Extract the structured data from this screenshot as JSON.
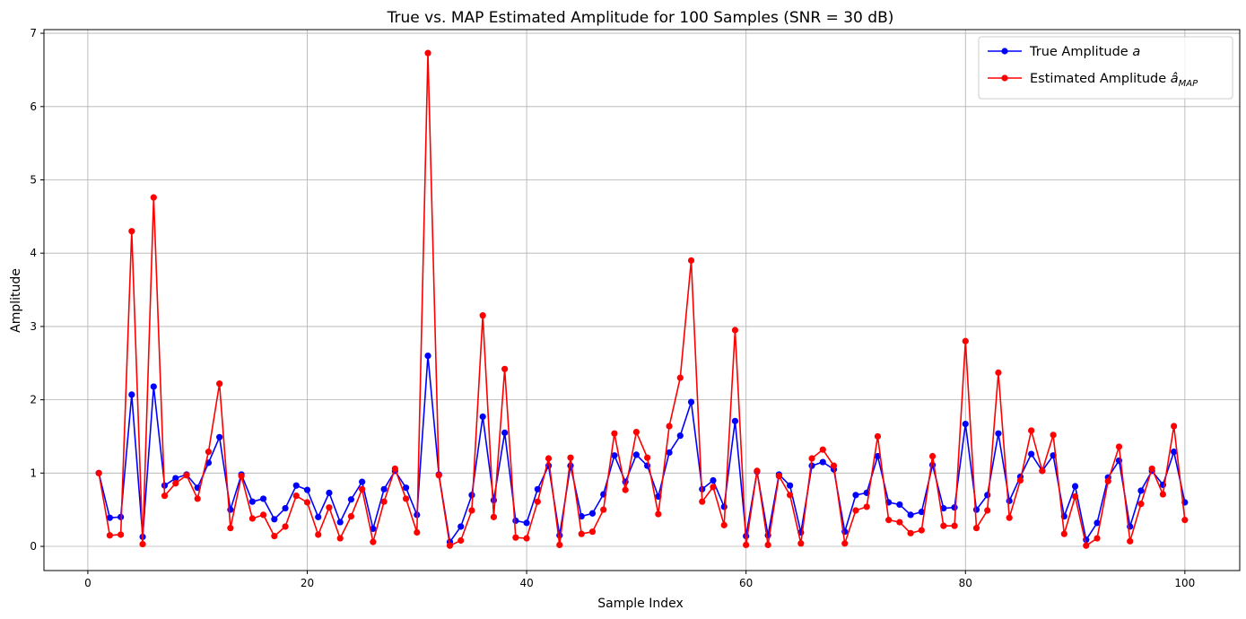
{
  "chart_data": {
    "type": "line",
    "title": "True vs. MAP Estimated Amplitude for 100 Samples (SNR = 30 dB)",
    "xlabel": "Sample Index",
    "ylabel": "Amplitude",
    "xlim": [
      -4,
      105
    ],
    "ylim": [
      -0.33,
      7.05
    ],
    "xticks": [
      0,
      20,
      40,
      60,
      80,
      100
    ],
    "yticks": [
      0,
      1,
      2,
      3,
      4,
      5,
      6,
      7
    ],
    "grid": true,
    "legend_position": "top-right",
    "x": [
      1,
      2,
      3,
      4,
      5,
      6,
      7,
      8,
      9,
      10,
      11,
      12,
      13,
      14,
      15,
      16,
      17,
      18,
      19,
      20,
      21,
      22,
      23,
      24,
      25,
      26,
      27,
      28,
      29,
      30,
      31,
      32,
      33,
      34,
      35,
      36,
      37,
      38,
      39,
      40,
      41,
      42,
      43,
      44,
      45,
      46,
      47,
      48,
      49,
      50,
      51,
      52,
      53,
      54,
      55,
      56,
      57,
      58,
      59,
      60,
      61,
      62,
      63,
      64,
      65,
      66,
      67,
      68,
      69,
      70,
      71,
      72,
      73,
      74,
      75,
      76,
      77,
      78,
      79,
      80,
      81,
      82,
      83,
      84,
      85,
      86,
      87,
      88,
      89,
      90,
      91,
      92,
      93,
      94,
      95,
      96,
      97,
      98,
      99,
      100
    ],
    "series": [
      {
        "name": "True Amplitude $a$",
        "label_main": "True Amplitude ",
        "label_sym": "a",
        "color": "#0000ff",
        "values": [
          1.0,
          0.39,
          0.4,
          2.07,
          0.13,
          2.18,
          0.83,
          0.93,
          0.98,
          0.8,
          1.14,
          1.49,
          0.5,
          0.98,
          0.61,
          0.65,
          0.37,
          0.52,
          0.83,
          0.77,
          0.4,
          0.73,
          0.33,
          0.64,
          0.88,
          0.24,
          0.78,
          1.03,
          0.8,
          0.43,
          2.6,
          0.98,
          0.06,
          0.27,
          0.7,
          1.77,
          0.63,
          1.55,
          0.35,
          0.32,
          0.78,
          1.1,
          0.15,
          1.1,
          0.41,
          0.45,
          0.71,
          1.24,
          0.88,
          1.25,
          1.1,
          0.68,
          1.28,
          1.51,
          1.97,
          0.78,
          0.9,
          0.54,
          1.71,
          0.14,
          1.02,
          0.15,
          0.98,
          0.83,
          0.19,
          1.1,
          1.15,
          1.05,
          0.2,
          0.7,
          0.73,
          1.23,
          0.6,
          0.57,
          0.43,
          0.47,
          1.11,
          0.52,
          0.53,
          1.67,
          0.5,
          0.7,
          1.54,
          0.62,
          0.95,
          1.26,
          1.03,
          1.24,
          0.41,
          0.82,
          0.09,
          0.32,
          0.94,
          1.17,
          0.27,
          0.76,
          1.03,
          0.84,
          1.29,
          0.6
        ]
      },
      {
        "name": "Estimated Amplitude $\\hat{a}_{MAP}$",
        "label_main": "Estimated Amplitude ",
        "label_sym": "â",
        "label_sub": "MAP",
        "color": "#ff0000",
        "values": [
          1.0,
          0.15,
          0.16,
          4.3,
          0.03,
          4.76,
          0.69,
          0.86,
          0.97,
          0.65,
          1.29,
          2.22,
          0.25,
          0.96,
          0.38,
          0.43,
          0.14,
          0.27,
          0.69,
          0.6,
          0.16,
          0.53,
          0.11,
          0.41,
          0.78,
          0.06,
          0.61,
          1.06,
          0.65,
          0.19,
          6.73,
          0.97,
          0.01,
          0.08,
          0.49,
          3.15,
          0.4,
          2.42,
          0.12,
          0.11,
          0.61,
          1.2,
          0.02,
          1.21,
          0.17,
          0.2,
          0.5,
          1.54,
          0.77,
          1.56,
          1.21,
          0.44,
          1.64,
          2.3,
          3.9,
          0.61,
          0.81,
          0.29,
          2.95,
          0.02,
          1.03,
          0.02,
          0.96,
          0.7,
          0.04,
          1.2,
          1.32,
          1.1,
          0.04,
          0.49,
          0.54,
          1.5,
          0.36,
          0.33,
          0.18,
          0.22,
          1.23,
          0.28,
          0.28,
          2.8,
          0.25,
          0.49,
          2.37,
          0.39,
          0.9,
          1.58,
          1.03,
          1.52,
          0.17,
          0.68,
          0.01,
          0.11,
          0.89,
          1.36,
          0.07,
          0.58,
          1.06,
          0.71,
          1.64,
          0.36
        ]
      }
    ]
  }
}
